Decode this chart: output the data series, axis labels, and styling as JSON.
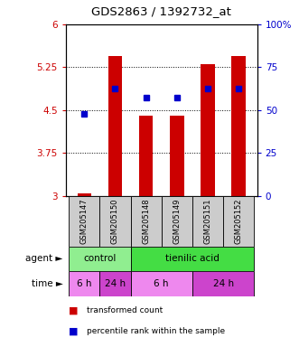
{
  "title": "GDS2863 / 1392732_at",
  "samples": [
    "GSM205147",
    "GSM205150",
    "GSM205148",
    "GSM205149",
    "GSM205151",
    "GSM205152"
  ],
  "bar_values": [
    3.05,
    5.45,
    4.4,
    4.4,
    5.3,
    5.45
  ],
  "blue_dot_values": [
    4.43,
    4.87,
    4.72,
    4.72,
    4.87,
    4.87
  ],
  "bar_color": "#cc0000",
  "blue_dot_color": "#0000cc",
  "ylim_left": [
    3.0,
    6.0
  ],
  "ylim_right": [
    0,
    100
  ],
  "yticks_left": [
    3.0,
    3.75,
    4.5,
    5.25,
    6.0
  ],
  "ytick_labels_left": [
    "3",
    "3.75",
    "4.5",
    "5.25",
    "6"
  ],
  "yticks_right": [
    0,
    25,
    50,
    75,
    100
  ],
  "ytick_labels_right": [
    "0",
    "25",
    "50",
    "75",
    "100%"
  ],
  "agent_groups": [
    {
      "label": "control",
      "span": [
        0,
        2
      ],
      "color": "#90ee90"
    },
    {
      "label": "tienilic acid",
      "span": [
        2,
        6
      ],
      "color": "#44dd44"
    }
  ],
  "time_groups": [
    {
      "label": "6 h",
      "span": [
        0,
        1
      ],
      "color": "#ee88ee"
    },
    {
      "label": "24 h",
      "span": [
        1,
        2
      ],
      "color": "#cc44cc"
    },
    {
      "label": "6 h",
      "span": [
        2,
        4
      ],
      "color": "#ee88ee"
    },
    {
      "label": "24 h",
      "span": [
        4,
        6
      ],
      "color": "#cc44cc"
    }
  ],
  "legend_items": [
    {
      "color": "#cc0000",
      "label": "transformed count"
    },
    {
      "color": "#0000cc",
      "label": "percentile rank within the sample"
    }
  ],
  "background_color": "#ffffff",
  "sample_label_bg": "#cccccc",
  "grid_yticks": [
    3.75,
    4.5,
    5.25
  ]
}
